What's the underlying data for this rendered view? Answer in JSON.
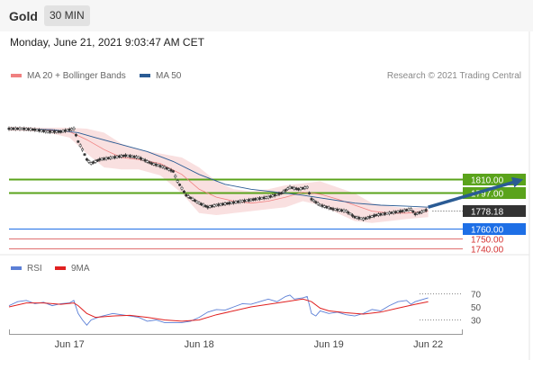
{
  "header": {
    "symbol": "Gold",
    "timeframe": "30 MIN"
  },
  "datetime": "Monday, June 21, 2021 9:03:47 AM CET",
  "legend": {
    "ma20": {
      "label": "MA 20 + Bollinger Bands",
      "color": "#f08080"
    },
    "ma50": {
      "label": "MA 50",
      "color": "#2a5b94"
    }
  },
  "credit": "Research © 2021 Trading Central",
  "rsi_legend": {
    "rsi": {
      "label": "RSI",
      "color": "#5b7fd6"
    },
    "ma9": {
      "label": "9MA",
      "color": "#e02020"
    }
  },
  "chart_data": [
    {
      "type": "line",
      "title": "",
      "xlabel": "",
      "ylabel": "",
      "x_range": [
        0,
        120
      ],
      "ylim": [
        1735,
        1900
      ],
      "x_ticks": [
        {
          "x": 14,
          "label": "Jun 17"
        },
        {
          "x": 44,
          "label": "Jun 18"
        },
        {
          "x": 74,
          "label": "Jun 19"
        },
        {
          "x": 97,
          "label": "Jun 22"
        }
      ],
      "price_points": [
        [
          0,
          1861
        ],
        [
          3,
          1861
        ],
        [
          6,
          1860
        ],
        [
          9,
          1858
        ],
        [
          12,
          1858
        ],
        [
          15,
          1861
        ],
        [
          16,
          1848
        ],
        [
          17,
          1840
        ],
        [
          18,
          1830
        ],
        [
          19,
          1826
        ],
        [
          21,
          1830
        ],
        [
          24,
          1832
        ],
        [
          27,
          1834
        ],
        [
          30,
          1832
        ],
        [
          33,
          1826
        ],
        [
          36,
          1822
        ],
        [
          38,
          1818
        ],
        [
          39,
          1808
        ],
        [
          41,
          1794
        ],
        [
          44,
          1786
        ],
        [
          46,
          1782
        ],
        [
          48,
          1784
        ],
        [
          51,
          1786
        ],
        [
          54,
          1788
        ],
        [
          57,
          1790
        ],
        [
          60,
          1792
        ],
        [
          63,
          1796
        ],
        [
          65,
          1802
        ],
        [
          67,
          1800
        ],
        [
          69,
          1802
        ],
        [
          70,
          1790
        ],
        [
          72,
          1784
        ],
        [
          75,
          1780
        ],
        [
          78,
          1778
        ],
        [
          80,
          1772
        ],
        [
          82,
          1770
        ],
        [
          85,
          1774
        ],
        [
          88,
          1776
        ],
        [
          91,
          1778
        ],
        [
          93,
          1780
        ],
        [
          94,
          1775
        ],
        [
          96,
          1778
        ],
        [
          97,
          1780
        ]
      ],
      "series": [
        {
          "name": "MA 20",
          "color": "#f08080",
          "points": [
            [
              0,
              1861
            ],
            [
              8,
              1860
            ],
            [
              14,
              1858
            ],
            [
              18,
              1850
            ],
            [
              22,
              1840
            ],
            [
              26,
              1832
            ],
            [
              30,
              1830
            ],
            [
              35,
              1826
            ],
            [
              40,
              1815
            ],
            [
              44,
              1800
            ],
            [
              48,
              1792
            ],
            [
              52,
              1788
            ],
            [
              56,
              1786
            ],
            [
              60,
              1788
            ],
            [
              64,
              1792
            ],
            [
              68,
              1797
            ],
            [
              72,
              1795
            ],
            [
              76,
              1790
            ],
            [
              80,
              1784
            ],
            [
              84,
              1778
            ],
            [
              88,
              1776
            ],
            [
              92,
              1776
            ],
            [
              97,
              1778
            ]
          ]
        },
        {
          "name": "MA 50",
          "color": "#2a5b94",
          "points": [
            [
              0,
              1861
            ],
            [
              10,
              1860
            ],
            [
              16,
              1857
            ],
            [
              20,
              1852
            ],
            [
              26,
              1845
            ],
            [
              32,
              1838
            ],
            [
              38,
              1828
            ],
            [
              44,
              1815
            ],
            [
              50,
              1805
            ],
            [
              56,
              1800
            ],
            [
              62,
              1797
            ],
            [
              68,
              1794
            ],
            [
              74,
              1790
            ],
            [
              80,
              1786
            ],
            [
              86,
              1784
            ],
            [
              92,
              1783
            ],
            [
              97,
              1782
            ]
          ]
        }
      ],
      "bollinger_band": {
        "color": "#f7d5d5",
        "upper": [
          [
            0,
            1863
          ],
          [
            8,
            1862
          ],
          [
            14,
            1862
          ],
          [
            18,
            1861
          ],
          [
            22,
            1857
          ],
          [
            26,
            1846
          ],
          [
            30,
            1840
          ],
          [
            35,
            1836
          ],
          [
            40,
            1832
          ],
          [
            44,
            1822
          ],
          [
            48,
            1808
          ],
          [
            52,
            1800
          ],
          [
            56,
            1798
          ],
          [
            60,
            1800
          ],
          [
            64,
            1804
          ],
          [
            68,
            1806
          ],
          [
            72,
            1808
          ],
          [
            76,
            1802
          ],
          [
            80,
            1796
          ],
          [
            84,
            1786
          ],
          [
            88,
            1783
          ],
          [
            92,
            1781
          ],
          [
            97,
            1782
          ]
        ],
        "lower": [
          [
            0,
            1859
          ],
          [
            8,
            1858
          ],
          [
            14,
            1852
          ],
          [
            18,
            1836
          ],
          [
            22,
            1822
          ],
          [
            26,
            1820
          ],
          [
            30,
            1820
          ],
          [
            35,
            1814
          ],
          [
            40,
            1796
          ],
          [
            44,
            1776
          ],
          [
            48,
            1774
          ],
          [
            52,
            1776
          ],
          [
            56,
            1778
          ],
          [
            60,
            1780
          ],
          [
            64,
            1782
          ],
          [
            68,
            1788
          ],
          [
            72,
            1784
          ],
          [
            76,
            1776
          ],
          [
            80,
            1768
          ],
          [
            84,
            1766
          ],
          [
            88,
            1768
          ],
          [
            92,
            1770
          ],
          [
            97,
            1772
          ]
        ]
      },
      "levels": [
        {
          "label": "1810.00",
          "value": 1810,
          "color": "#5aa31b",
          "style": "resistance"
        },
        {
          "label": "1797.00",
          "value": 1797,
          "color": "#5aa31b",
          "style": "resistance"
        },
        {
          "label": "1778.18",
          "value": 1778.18,
          "color": "#333333",
          "style": "last-price"
        },
        {
          "label": "1760.00",
          "value": 1760,
          "color": "#1e6fe6",
          "style": "pivot"
        },
        {
          "label": "1750.00",
          "value": 1750,
          "color": "#e07070",
          "style": "support"
        },
        {
          "label": "1740.00",
          "value": 1740,
          "color": "#e07070",
          "style": "support"
        }
      ],
      "projection": {
        "from": [
          97,
          1782
        ],
        "to": [
          119,
          1810
        ],
        "color": "#2a5b94"
      }
    },
    {
      "type": "line",
      "title": "",
      "xlabel": "",
      "ylabel": "",
      "ylim": [
        10,
        90
      ],
      "y_ticks": [
        70,
        50,
        30
      ],
      "series": [
        {
          "name": "RSI",
          "color": "#5b7fd6",
          "points": [
            [
              0,
              52
            ],
            [
              2,
              58
            ],
            [
              4,
              60
            ],
            [
              6,
              55
            ],
            [
              8,
              57
            ],
            [
              10,
              52
            ],
            [
              12,
              55
            ],
            [
              14,
              56
            ],
            [
              15,
              60
            ],
            [
              16,
              40
            ],
            [
              17,
              30
            ],
            [
              18,
              22
            ],
            [
              19,
              30
            ],
            [
              21,
              35
            ],
            [
              24,
              40
            ],
            [
              26,
              38
            ],
            [
              28,
              36
            ],
            [
              30,
              34
            ],
            [
              32,
              28
            ],
            [
              34,
              30
            ],
            [
              36,
              26
            ],
            [
              38,
              26
            ],
            [
              40,
              26
            ],
            [
              42,
              28
            ],
            [
              44,
              34
            ],
            [
              46,
              42
            ],
            [
              48,
              46
            ],
            [
              50,
              45
            ],
            [
              52,
              50
            ],
            [
              54,
              55
            ],
            [
              56,
              54
            ],
            [
              58,
              58
            ],
            [
              60,
              62
            ],
            [
              62,
              58
            ],
            [
              64,
              66
            ],
            [
              65,
              68
            ],
            [
              66,
              62
            ],
            [
              68,
              64
            ],
            [
              69,
              66
            ],
            [
              70,
              40
            ],
            [
              71,
              36
            ],
            [
              72,
              44
            ],
            [
              74,
              40
            ],
            [
              76,
              42
            ],
            [
              78,
              38
            ],
            [
              80,
              36
            ],
            [
              82,
              40
            ],
            [
              84,
              46
            ],
            [
              86,
              44
            ],
            [
              88,
              52
            ],
            [
              90,
              58
            ],
            [
              92,
              60
            ],
            [
              93,
              54
            ],
            [
              94,
              58
            ],
            [
              96,
              62
            ],
            [
              97,
              64
            ]
          ]
        },
        {
          "name": "9MA",
          "color": "#e02020",
          "points": [
            [
              0,
              50
            ],
            [
              4,
              56
            ],
            [
              8,
              56
            ],
            [
              12,
              54
            ],
            [
              15,
              56
            ],
            [
              16,
              52
            ],
            [
              18,
              40
            ],
            [
              20,
              34
            ],
            [
              24,
              36
            ],
            [
              28,
              37
            ],
            [
              32,
              34
            ],
            [
              36,
              30
            ],
            [
              40,
              28
            ],
            [
              44,
              30
            ],
            [
              48,
              38
            ],
            [
              52,
              44
            ],
            [
              56,
              50
            ],
            [
              60,
              54
            ],
            [
              64,
              58
            ],
            [
              68,
              62
            ],
            [
              70,
              58
            ],
            [
              72,
              48
            ],
            [
              74,
              44
            ],
            [
              78,
              41
            ],
            [
              82,
              39
            ],
            [
              86,
              42
            ],
            [
              90,
              48
            ],
            [
              94,
              54
            ],
            [
              97,
              58
            ]
          ]
        }
      ]
    }
  ]
}
